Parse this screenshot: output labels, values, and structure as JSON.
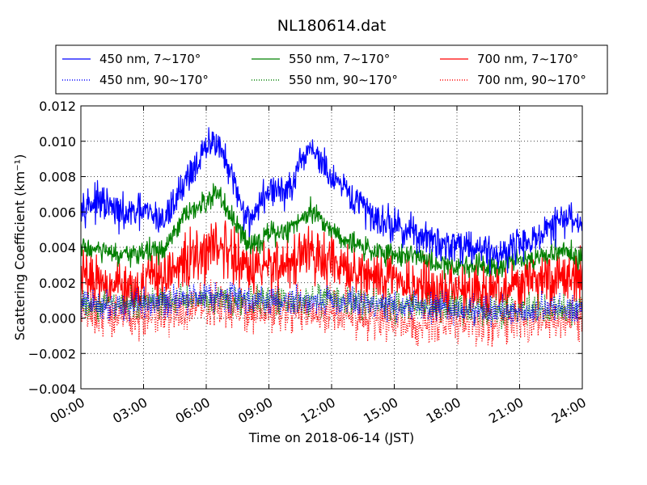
{
  "chart_data": {
    "type": "line",
    "title": "NL180614.dat",
    "xlabel": "Time on 2018-06-14 (JST)",
    "ylabel": "Scattering Coefficient (km⁻¹)",
    "xlim": [
      "00:00",
      "24:00"
    ],
    "ylim": [
      -0.004,
      0.012
    ],
    "x_ticks": [
      "00:00",
      "03:00",
      "06:00",
      "09:00",
      "12:00",
      "15:00",
      "18:00",
      "21:00",
      "24:00"
    ],
    "y_ticks": [
      "−0.004",
      "−0.002",
      "0.000",
      "0.002",
      "0.004",
      "0.006",
      "0.008",
      "0.010",
      "0.012"
    ],
    "y_tick_values": [
      -0.004,
      -0.002,
      0.0,
      0.002,
      0.004,
      0.006,
      0.008,
      0.01,
      0.012
    ],
    "grid": true,
    "legend_position": "top",
    "series": [
      {
        "name": "450 nm, 7∼170°",
        "color": "#0000ff",
        "style": "solid",
        "noise": 0.0006,
        "x": [
          "00:00",
          "01:00",
          "02:00",
          "03:00",
          "04:00",
          "05:00",
          "06:00",
          "06:30",
          "07:00",
          "08:00",
          "09:00",
          "10:00",
          "11:00",
          "12:00",
          "13:00",
          "14:00",
          "15:00",
          "16:00",
          "17:00",
          "18:00",
          "19:00",
          "20:00",
          "21:00",
          "22:00",
          "23:00",
          "24:00"
        ],
        "values": [
          0.0065,
          0.0065,
          0.0058,
          0.006,
          0.0055,
          0.0078,
          0.0095,
          0.0102,
          0.0085,
          0.0055,
          0.0072,
          0.0072,
          0.0098,
          0.0078,
          0.0068,
          0.0058,
          0.0052,
          0.0048,
          0.0042,
          0.0042,
          0.004,
          0.0036,
          0.0042,
          0.0046,
          0.0056,
          0.0054
        ]
      },
      {
        "name": "450 nm, 90∼170°",
        "color": "#0000ff",
        "style": "dotted",
        "noise": 0.0005,
        "x": [
          "00:00",
          "03:00",
          "06:00",
          "09:00",
          "12:00",
          "15:00",
          "18:00",
          "21:00",
          "24:00"
        ],
        "values": [
          0.0008,
          0.0007,
          0.0014,
          0.0009,
          0.001,
          0.0007,
          0.0005,
          0.0004,
          0.0006
        ]
      },
      {
        "name": "550 nm, 7∼170°",
        "color": "#008000",
        "style": "solid",
        "noise": 0.0004,
        "x": [
          "00:00",
          "01:00",
          "02:00",
          "03:00",
          "04:00",
          "05:00",
          "06:00",
          "06:30",
          "07:00",
          "08:00",
          "09:00",
          "10:00",
          "11:00",
          "12:00",
          "13:00",
          "14:00",
          "15:00",
          "16:00",
          "17:00",
          "18:00",
          "19:00",
          "20:00",
          "21:00",
          "22:00",
          "23:00",
          "24:00"
        ],
        "values": [
          0.004,
          0.0038,
          0.0034,
          0.0038,
          0.0038,
          0.0058,
          0.0065,
          0.0072,
          0.006,
          0.0042,
          0.0047,
          0.005,
          0.0062,
          0.005,
          0.0042,
          0.0038,
          0.0036,
          0.0036,
          0.003,
          0.003,
          0.003,
          0.003,
          0.0034,
          0.0034,
          0.0038,
          0.0034
        ]
      },
      {
        "name": "550 nm, 90∼170°",
        "color": "#008000",
        "style": "dotted",
        "noise": 0.0005,
        "x": [
          "00:00",
          "03:00",
          "06:00",
          "09:00",
          "12:00",
          "15:00",
          "18:00",
          "21:00",
          "24:00"
        ],
        "values": [
          0.0008,
          0.0008,
          0.0012,
          0.0009,
          0.001,
          0.0007,
          0.0005,
          0.0004,
          0.0006
        ]
      },
      {
        "name": "700 nm, 7∼170°",
        "color": "#ff0000",
        "style": "solid",
        "noise": 0.0009,
        "x": [
          "00:00",
          "01:00",
          "02:00",
          "03:00",
          "04:00",
          "05:00",
          "06:00",
          "06:30",
          "07:00",
          "08:00",
          "09:00",
          "10:00",
          "11:00",
          "12:00",
          "13:00",
          "14:00",
          "15:00",
          "16:00",
          "17:00",
          "18:00",
          "19:00",
          "20:00",
          "21:00",
          "22:00",
          "23:00",
          "24:00"
        ],
        "values": [
          0.0024,
          0.0022,
          0.0018,
          0.002,
          0.0022,
          0.0032,
          0.0036,
          0.0044,
          0.0038,
          0.0026,
          0.003,
          0.0032,
          0.0036,
          0.003,
          0.0026,
          0.0022,
          0.0022,
          0.002,
          0.0016,
          0.0016,
          0.0016,
          0.0016,
          0.002,
          0.002,
          0.0024,
          0.0024
        ]
      },
      {
        "name": "700 nm, 90∼170°",
        "color": "#ff0000",
        "style": "dotted",
        "noise": 0.0008,
        "x": [
          "00:00",
          "03:00",
          "06:00",
          "09:00",
          "12:00",
          "15:00",
          "18:00",
          "21:00",
          "24:00"
        ],
        "values": [
          0.0003,
          0.0001,
          0.0008,
          0.0003,
          0.0004,
          -0.0002,
          -0.0004,
          -0.0003,
          0.0001
        ]
      }
    ]
  }
}
